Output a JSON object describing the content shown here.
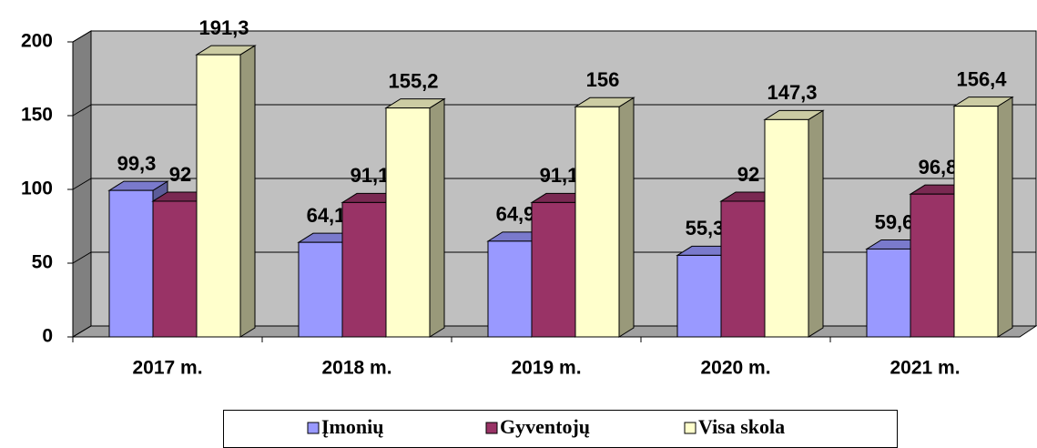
{
  "chart_data": {
    "type": "bar3d",
    "categories": [
      "2017 m.",
      "2018 m.",
      "2019 m.",
      "2020 m.",
      "2021 m."
    ],
    "series": [
      {
        "name": "Įmonių",
        "color": "#9999ff",
        "values": [
          99.3,
          64.1,
          64.9,
          55.3,
          59.6
        ],
        "value_labels": [
          "99,3",
          "64,1",
          "64,9",
          "55,3",
          "59,6"
        ]
      },
      {
        "name": "Gyventojų",
        "color": "#993366",
        "values": [
          92,
          91.1,
          91.1,
          92,
          96.8
        ],
        "value_labels": [
          "92",
          "91,1",
          "91,1",
          "92",
          "96,8"
        ]
      },
      {
        "name": "Visa skola",
        "color": "#ffffcc",
        "values": [
          191.3,
          155.2,
          156,
          147.3,
          156.4
        ],
        "value_labels": [
          "191,3",
          "155,2",
          "156",
          "147,3",
          "156,4"
        ]
      }
    ],
    "ylim": [
      0,
      200
    ],
    "yticks": [
      0,
      50,
      100,
      150,
      200
    ],
    "grid": true,
    "legend": "bottom"
  }
}
